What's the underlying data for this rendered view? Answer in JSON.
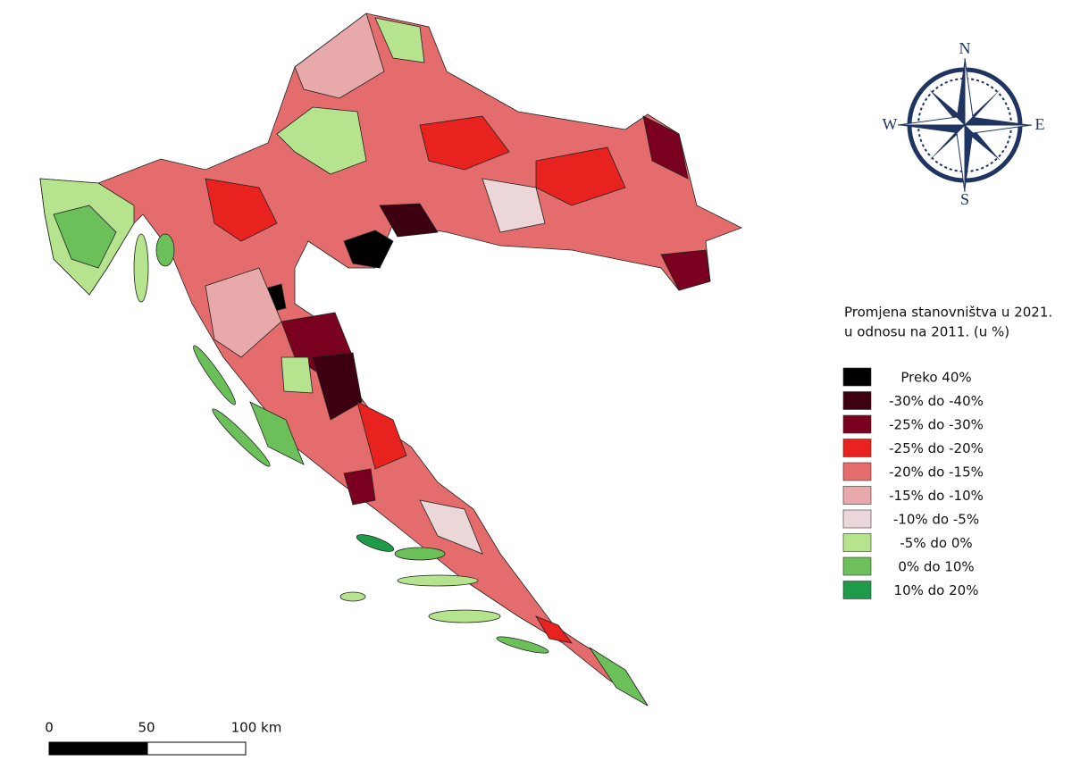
{
  "legend": {
    "title_lines": [
      "Promjena stanovništva u 2021.",
      "u odnosu na 2011. (u %)"
    ],
    "items": [
      {
        "label": "Preko 40%",
        "color": "#000000"
      },
      {
        "label": "-30% do -40%",
        "color": "#3d0010"
      },
      {
        "label": "-25% do -30%",
        "color": "#7a0020"
      },
      {
        "label": "-25% do -20%",
        "color": "#e8221f"
      },
      {
        "label": "-20% do -15%",
        "color": "#e56c6c"
      },
      {
        "label": "-15% do -10%",
        "color": "#e8a9ab"
      },
      {
        "label": "-10% do -5%",
        "color": "#ecd7d8"
      },
      {
        "label": "-5% do 0%",
        "color": "#b5e38e"
      },
      {
        "label": "0% do 10%",
        "color": "#6cc05a"
      },
      {
        "label": "10% do 20%",
        "color": "#1e9b48"
      }
    ]
  },
  "scale_bar": {
    "labels": [
      "0",
      "50",
      "100 km"
    ]
  },
  "compass": {
    "north": "N",
    "east": "E",
    "south": "S",
    "west": "W"
  }
}
